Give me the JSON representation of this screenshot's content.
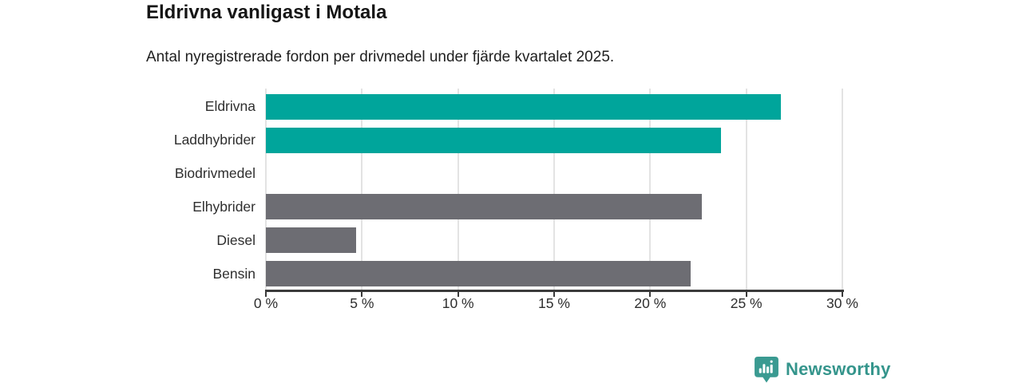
{
  "header": {
    "title": "Eldrivna vanligast i Motala",
    "subtitle": "Antal nyregistrerade fordon per drivmedel under fjärde kvartalet 2025."
  },
  "chart_data": {
    "type": "bar",
    "orientation": "horizontal",
    "title": "Eldrivna vanligast i Motala",
    "subtitle": "Antal nyregistrerade fordon per drivmedel under fjärde kvartalet 2025.",
    "categories": [
      "Eldrivna",
      "Laddhybrider",
      "Biodrivmedel",
      "Elhybrider",
      "Diesel",
      "Bensin"
    ],
    "values": [
      26.8,
      23.7,
      0,
      22.7,
      4.7,
      22.1
    ],
    "unit": "%",
    "bar_colors": [
      "#00a59b",
      "#00a59b",
      "#00a59b",
      "#6d6d73",
      "#6d6d73",
      "#6d6d73"
    ],
    "xlim": [
      0,
      30
    ],
    "x_ticks": [
      0,
      5,
      10,
      15,
      20,
      25,
      30
    ],
    "x_tick_labels": [
      "0 %",
      "5 %",
      "10 %",
      "15 %",
      "20 %",
      "25 %",
      "30 %"
    ],
    "grid": true,
    "legend": "none",
    "colors": {
      "highlight": "#00a59b",
      "muted": "#6d6d73",
      "gridline": "#e3e3e3",
      "axis": "#3b3b3b"
    }
  },
  "footer": {
    "brand": "Newsworthy",
    "logo_icon": "bar-chart-speech-bubble-icon",
    "brand_color": "#35958c",
    "icon_color": "#3a9a91"
  }
}
